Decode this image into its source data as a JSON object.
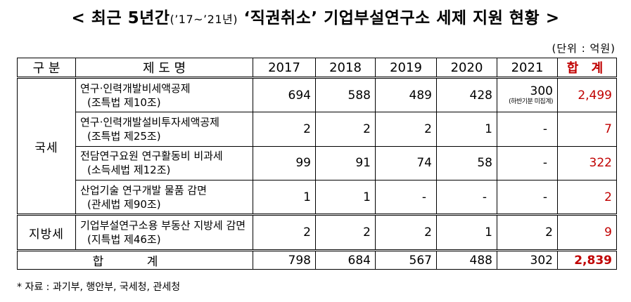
{
  "title": {
    "prefix": "< 최근 5년간",
    "period": "(’17~’21년)",
    "suffix": " ‘직권취소’ 기업부설연구소 세제 지원 현황 >"
  },
  "unit": "(단위 : 억원)",
  "table": {
    "headers": {
      "category": "구 분",
      "system": "제 도 명",
      "years": [
        "2017",
        "2018",
        "2019",
        "2020",
        "2021"
      ],
      "total": "합 계"
    },
    "groups": [
      {
        "category": "국세",
        "rows": [
          {
            "name": "연구·인력개발비세액공제",
            "law": "(조특법 제10조)",
            "values": [
              "694",
              "588",
              "489",
              "428",
              "300"
            ],
            "note": "(하반기분 미집계)",
            "total": "2,499"
          },
          {
            "name": "연구·인력개발설비투자세액공제",
            "law": "(조특법 제25조)",
            "values": [
              "2",
              "2",
              "2",
              "1",
              "-"
            ],
            "total": "7"
          },
          {
            "name": "전담연구요원 연구활동비 비과세",
            "law": "(소득세법 제12조)",
            "values": [
              "99",
              "91",
              "74",
              "58",
              "-"
            ],
            "total": "322"
          },
          {
            "name": "산업기술 연구개발 물품 감면",
            "law": "(관세법 제90조)",
            "values": [
              "1",
              "1",
              "-",
              "-",
              "-"
            ],
            "total": "2"
          }
        ]
      },
      {
        "category": "지방세",
        "rows": [
          {
            "name": "기업부설연구소용 부동산 지방세 감면",
            "law": "(지특법 제46조)",
            "values": [
              "2",
              "2",
              "2",
              "1",
              "2"
            ],
            "total": "9"
          }
        ]
      }
    ],
    "sum": {
      "label": "합 계",
      "values": [
        "798",
        "684",
        "567",
        "488",
        "302"
      ],
      "total": "2,839"
    }
  },
  "source": "* 자료 : 과기부, 행안부, 국세청, 관세청"
}
